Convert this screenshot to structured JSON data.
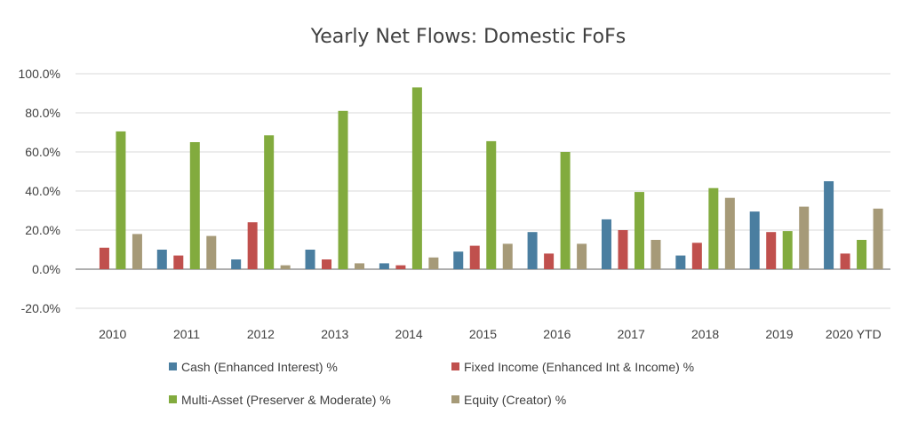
{
  "chart_data": {
    "type": "bar",
    "title": "Yearly Net Flows: Domestic FoFs",
    "xlabel": "",
    "ylabel": "",
    "categories": [
      "2010",
      "2011",
      "2012",
      "2013",
      "2014",
      "2015",
      "2016",
      "2017",
      "2018",
      "2019",
      "2020 YTD"
    ],
    "yticks": [
      "100.0%",
      "80.0%",
      "60.0%",
      "40.0%",
      "20.0%",
      "0.0%",
      "-20.0%"
    ],
    "ylim": [
      -20,
      100
    ],
    "grid": true,
    "legend_position": "bottom",
    "series": [
      {
        "name": "Cash (Enhanced Interest) %",
        "color": "#4a7ea0",
        "values": [
          0,
          10,
          5,
          10,
          3,
          9,
          19,
          25.5,
          7,
          29.5,
          45
        ]
      },
      {
        "name": "Fixed Income  (Enhanced Int & Income) %",
        "color": "#c0504d",
        "values": [
          11,
          7,
          24,
          5,
          2,
          12,
          8,
          20,
          13.5,
          19,
          8
        ]
      },
      {
        "name": "Multi-Asset (Preserver & Moderate) %",
        "color": "#82ab3e",
        "values": [
          70.5,
          65,
          68.5,
          81,
          93,
          65.5,
          60,
          39.5,
          41.5,
          19.5,
          15
        ]
      },
      {
        "name": "Equity (Creator) %",
        "color": "#a69a78",
        "values": [
          18,
          17,
          2,
          3,
          6,
          13,
          13,
          15,
          36.5,
          32,
          31
        ]
      }
    ]
  }
}
